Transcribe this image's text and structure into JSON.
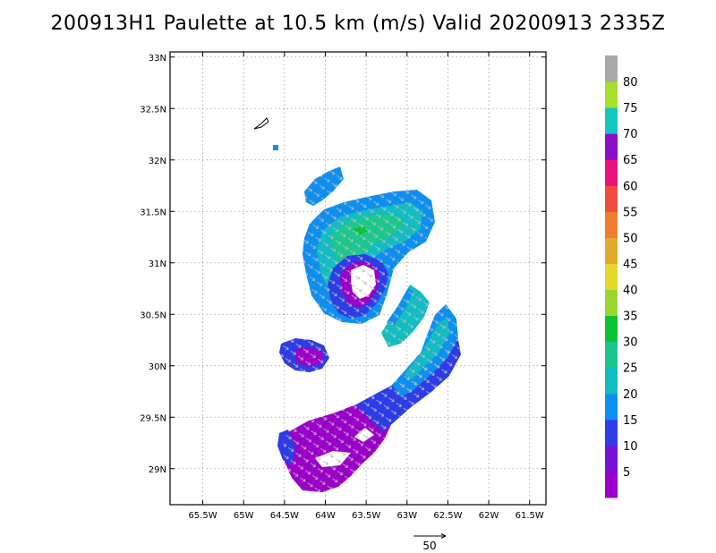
{
  "title": "200913H1 Paulette at 10.5 km (m/s) Valid 20200913 2335Z",
  "map": {
    "lon_range": [
      -65.9,
      -61.3
    ],
    "lat_range": [
      28.65,
      33.05
    ],
    "lon_ticks": [
      -65.5,
      -65,
      -64.5,
      -64,
      -63.5,
      -63,
      -62.5,
      -62,
      -61.5
    ],
    "lon_labels": [
      "65.5W",
      "65W",
      "64.5W",
      "64W",
      "63.5W",
      "63W",
      "62.5W",
      "62W",
      "61.5W"
    ],
    "lat_ticks": [
      29,
      29.5,
      30,
      30.5,
      31,
      31.5,
      32,
      32.5,
      33
    ],
    "lat_labels": [
      "29N",
      "29.5N",
      "30N",
      "30.5N",
      "31N",
      "31.5N",
      "32N",
      "32.5N",
      "33N"
    ],
    "grid": true
  },
  "colorbar": {
    "labels": [
      "5",
      "10",
      "15",
      "20",
      "25",
      "30",
      "35",
      "40",
      "45",
      "50",
      "55",
      "60",
      "65",
      "70",
      "75",
      "80"
    ],
    "colors": [
      "#9b00c8",
      "#7b10d6",
      "#2d3ce6",
      "#0d8ff0",
      "#12bcc3",
      "#1cc78e",
      "#0cc230",
      "#9ad72e",
      "#e6d72c",
      "#e0a92c",
      "#ee7d2d",
      "#ee4a3e",
      "#e8127a",
      "#8a0fc4",
      "#13c6be",
      "#a6de2c",
      "#a9a9a9"
    ]
  },
  "reference_vector": {
    "label": "50"
  },
  "wind_field": {
    "regions": [
      {
        "name": "inner-core-outer-ring",
        "speed": 22
      },
      {
        "name": "eyewall-ring",
        "speed": 12
      },
      {
        "name": "eye",
        "speed": 0
      },
      {
        "name": "rainband-southeast",
        "speed": 18
      },
      {
        "name": "rainband-south",
        "speed": 10
      },
      {
        "name": "southern-low-wind-area",
        "speed": 6
      }
    ]
  }
}
